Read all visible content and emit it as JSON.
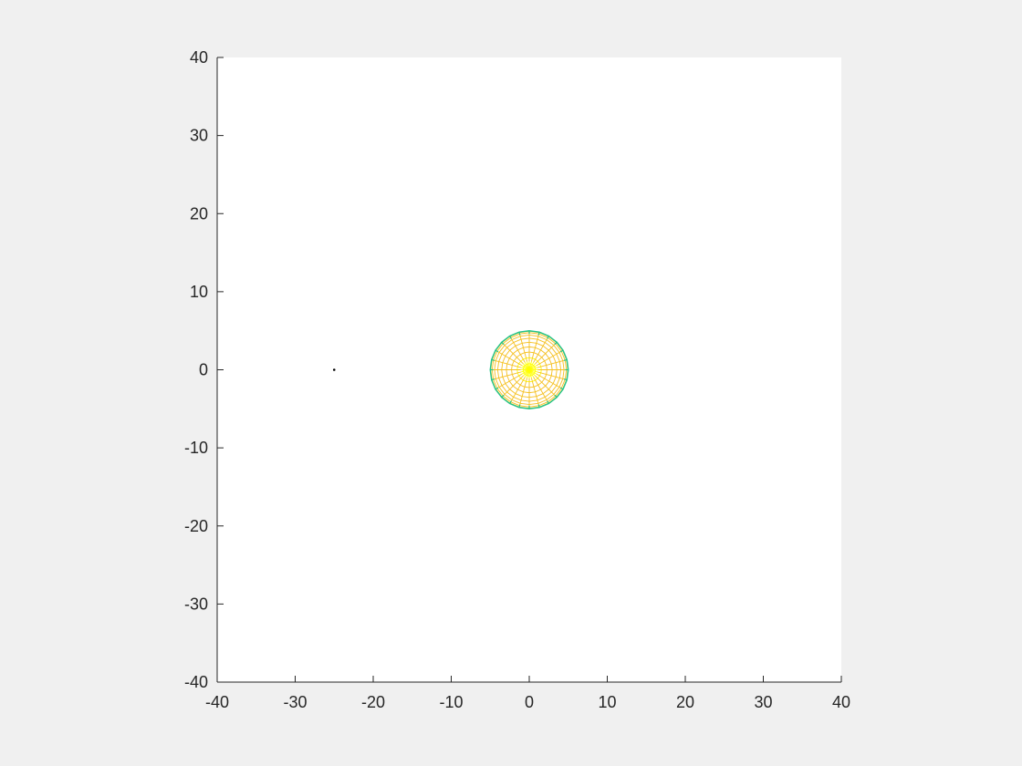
{
  "chart_data": {
    "type": "mesh",
    "title": "",
    "xlabel": "",
    "ylabel": "",
    "xlim": [
      -40,
      40
    ],
    "ylim": [
      -40,
      40
    ],
    "xticks": [
      -40,
      -30,
      -20,
      -10,
      0,
      10,
      20,
      30,
      40
    ],
    "yticks": [
      -40,
      -30,
      -20,
      -10,
      0,
      10,
      20,
      30,
      40
    ],
    "xtick_labels": [
      "-40",
      "-30",
      "-20",
      "-10",
      "0",
      "10",
      "20",
      "30",
      "40"
    ],
    "ytick_labels": [
      "-40",
      "-30",
      "-20",
      "-10",
      "0",
      "10",
      "20",
      "30",
      "40"
    ],
    "grid": false,
    "box": false,
    "colors": {
      "axes_background": "#ffffff",
      "figure_background": "#f0f0f0",
      "axis_line": "#262626",
      "mesh_center": "#ffff00",
      "mesh_inner": "#f5c020",
      "mesh_edge": "#22c48a",
      "point": "#000000"
    },
    "series": [
      {
        "type": "mesh-sphere",
        "center": [
          0,
          0
        ],
        "radius": 5,
        "radial_lines": 24,
        "rings": 10
      },
      {
        "type": "point",
        "x": -25,
        "y": 0
      }
    ]
  }
}
